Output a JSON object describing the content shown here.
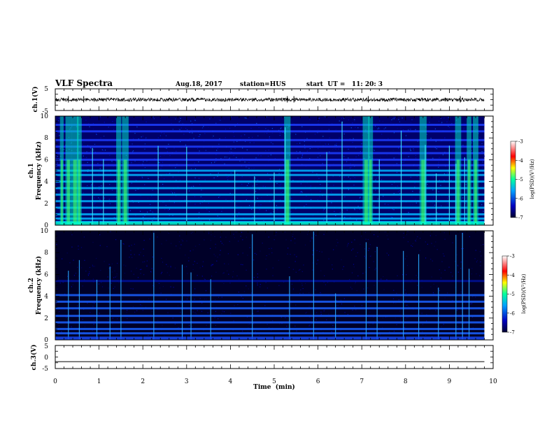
{
  "header": {
    "title": "VLF Spectra",
    "date": "Aug.18, 2017",
    "station": "station=HUS",
    "start": "start  UT =   11: 20: 3"
  },
  "chart_data": [
    {
      "type": "line",
      "panel": "ch1-waveform",
      "ylabel": "ch.1(V)",
      "ylim": [
        -5,
        5
      ],
      "yticks": [
        "5",
        "-5"
      ],
      "xlim": [
        0,
        10
      ],
      "series": [
        {
          "x": [
            0,
            9.8
          ],
          "y": [
            0,
            0
          ]
        }
      ],
      "note_amplitude": 0.5
    },
    {
      "type": "heatmap",
      "panel": "ch1-spectrogram",
      "ylabel": "ch.1",
      "ylabel2": "Frequency  (kHz)",
      "ylim": [
        0,
        10
      ],
      "yticks": [
        "0",
        "2",
        "4",
        "6",
        "8",
        "10"
      ],
      "xlim": [
        0,
        10
      ],
      "data_xmax": 9.8,
      "colorbar": {
        "label": "log(PSD)(V²/Hz)",
        "ticks": [
          "-3",
          "-4",
          "-5",
          "-6",
          "-7"
        ]
      },
      "bands_khz": [
        0.3,
        0.6,
        1.0,
        1.6,
        2.2,
        2.8,
        3.4,
        4.0,
        4.6,
        5.0,
        5.5,
        6.0,
        6.6,
        7.2,
        7.8,
        8.6,
        9.2
      ],
      "bursts_min": [
        0.15,
        0.3,
        0.45,
        0.55,
        1.45,
        1.6,
        5.3,
        7.1,
        7.2,
        8.4,
        9.2,
        9.45,
        9.6
      ],
      "spikes_min": [
        0.85,
        1.1,
        2.35,
        3.0,
        4.1,
        4.55,
        5.0,
        5.25,
        6.2,
        6.55,
        7.4,
        7.9,
        8.45,
        8.7,
        9.0,
        9.15,
        9.35
      ]
    },
    {
      "type": "heatmap",
      "panel": "ch2-spectrogram",
      "ylabel": "ch.2",
      "ylabel2": "Frequency  (kHz)",
      "ylim": [
        0,
        10
      ],
      "yticks": [
        "0",
        "2",
        "4",
        "6",
        "8",
        "10"
      ],
      "xlim": [
        0,
        10
      ],
      "data_xmax": 9.8,
      "colorbar": {
        "label": "log(PSD)(V²/Hz)",
        "ticks": [
          "-3",
          "-4",
          "-5",
          "-6",
          "-7"
        ]
      },
      "bands_khz": [
        0.6,
        1.0,
        1.6,
        2.2,
        2.9,
        3.5,
        4.1,
        5.4
      ],
      "spikes_min": [
        0.3,
        0.55,
        0.95,
        1.25,
        1.5,
        2.25,
        2.9,
        3.1,
        3.55,
        4.5,
        5.35,
        5.9,
        6.4,
        7.1,
        7.35,
        7.95,
        8.3,
        8.75,
        9.15,
        9.3,
        9.45
      ]
    },
    {
      "type": "line",
      "panel": "ch3-waveform",
      "ylabel": "ch.3(V)",
      "ylim": [
        -5,
        5
      ],
      "yticks": [
        "5",
        "0",
        "-5"
      ],
      "xlim": [
        0,
        10
      ],
      "xlabel": "Time  (min)",
      "xticks": [
        "0",
        "1",
        "2",
        "3",
        "4",
        "5",
        "6",
        "7",
        "8",
        "9",
        "10"
      ],
      "series": [
        {
          "x": [
            0,
            9.8
          ],
          "y": [
            -2,
            -2
          ]
        }
      ]
    }
  ]
}
